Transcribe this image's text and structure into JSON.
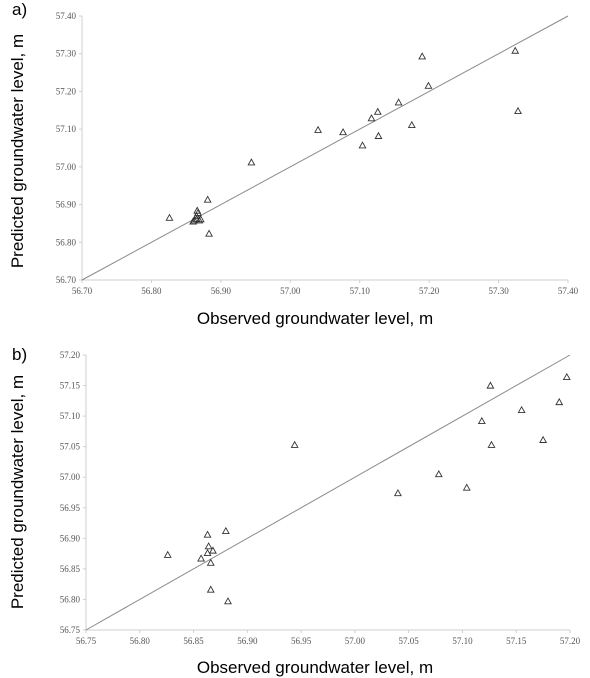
{
  "chart_data": [
    {
      "panel": "a)",
      "type": "scatter",
      "xlabel": "Observed groundwater level, m",
      "ylabel": "Predicted groundwater level, m",
      "xlim": [
        56.7,
        57.4
      ],
      "ylim": [
        56.7,
        57.4
      ],
      "xticks": [
        "56.70",
        "56.80",
        "56.90",
        "57.00",
        "57.10",
        "57.20",
        "57.30",
        "57.40"
      ],
      "yticks": [
        "56.70",
        "56.80",
        "56.90",
        "57.00",
        "57.10",
        "57.20",
        "57.30",
        "57.40"
      ],
      "reference_line": "1:1",
      "grid": false,
      "points": [
        [
          56.826,
          56.865
        ],
        [
          56.86,
          56.855
        ],
        [
          56.862,
          56.858
        ],
        [
          56.865,
          56.862
        ],
        [
          56.865,
          56.87
        ],
        [
          56.867,
          56.878
        ],
        [
          56.866,
          56.884
        ],
        [
          56.869,
          56.858
        ],
        [
          56.871,
          56.861
        ],
        [
          56.881,
          56.913
        ],
        [
          56.883,
          56.823
        ],
        [
          56.944,
          57.012
        ],
        [
          57.04,
          57.098
        ],
        [
          57.076,
          57.092
        ],
        [
          57.104,
          57.057
        ],
        [
          57.117,
          57.129
        ],
        [
          57.126,
          57.146
        ],
        [
          57.127,
          57.082
        ],
        [
          57.156,
          57.171
        ],
        [
          57.175,
          57.111
        ],
        [
          57.19,
          57.293
        ],
        [
          57.199,
          57.215
        ],
        [
          57.324,
          57.308
        ],
        [
          57.328,
          57.148
        ]
      ]
    },
    {
      "panel": "b)",
      "type": "scatter",
      "xlabel": "Observed groundwater level, m",
      "ylabel": "Predicted groundwater level, m",
      "xlim": [
        56.75,
        57.2
      ],
      "ylim": [
        56.75,
        57.2
      ],
      "xticks": [
        "56.75",
        "56.80",
        "56.85",
        "56.90",
        "56.95",
        "57.00",
        "57.05",
        "57.10",
        "57.15",
        "57.20"
      ],
      "yticks": [
        "56.75",
        "56.80",
        "56.85",
        "56.90",
        "56.95",
        "57.00",
        "57.05",
        "57.10",
        "57.15",
        "57.20"
      ],
      "reference_line": "1:1",
      "grid": false,
      "points": [
        [
          56.826,
          56.873
        ],
        [
          56.857,
          56.867
        ],
        [
          56.863,
          56.906
        ],
        [
          56.863,
          56.876
        ],
        [
          56.864,
          56.887
        ],
        [
          56.866,
          56.86
        ],
        [
          56.866,
          56.816
        ],
        [
          56.868,
          56.88
        ],
        [
          56.88,
          56.912
        ],
        [
          56.882,
          56.797
        ],
        [
          56.944,
          57.053
        ],
        [
          57.04,
          56.974
        ],
        [
          57.078,
          57.005
        ],
        [
          57.104,
          56.983
        ],
        [
          57.118,
          57.092
        ],
        [
          57.126,
          57.15
        ],
        [
          57.127,
          57.053
        ],
        [
          57.155,
          57.11
        ],
        [
          57.175,
          57.061
        ],
        [
          57.19,
          57.123
        ],
        [
          57.197,
          57.164
        ]
      ]
    }
  ]
}
